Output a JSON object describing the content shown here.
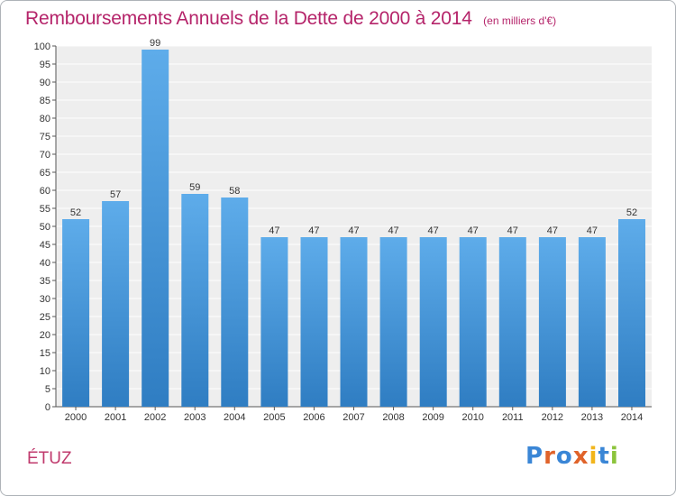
{
  "header": {
    "title": "Remboursements Annuels de la Dette de 2000 à 2014",
    "subtitle": "(en milliers d'€)"
  },
  "footer": {
    "commune": "ÉTUZ",
    "logo_text": "Proxiti",
    "logo_letters": [
      {
        "char": "P",
        "color": "#3a86d6"
      },
      {
        "char": "r",
        "color": "#e0632a"
      },
      {
        "char": "o",
        "color": "#3a86d6"
      },
      {
        "char": "x",
        "color": "#e0632a"
      },
      {
        "char": "i",
        "color": "#f2b51c"
      },
      {
        "char": "t",
        "color": "#3a86d6"
      },
      {
        "char": "i",
        "color": "#8cc43c"
      }
    ]
  },
  "colors": {
    "title": "#b5246a",
    "bar_top": "#5eacea",
    "bar_bottom": "#2f7dc2",
    "plot_background": "#eeeeee",
    "grid": "#ffffff"
  },
  "chart_data": {
    "type": "bar",
    "title": "Remboursements Annuels de la Dette de 2000 à 2014",
    "xlabel": "",
    "ylabel": "",
    "categories": [
      "2000",
      "2001",
      "2002",
      "2003",
      "2004",
      "2005",
      "2006",
      "2007",
      "2008",
      "2009",
      "2010",
      "2011",
      "2012",
      "2013",
      "2014"
    ],
    "values": [
      52,
      57,
      99,
      59,
      58,
      47,
      47,
      47,
      47,
      47,
      47,
      47,
      47,
      47,
      52
    ],
    "ylim": [
      0,
      100
    ],
    "yticks": [
      0,
      5,
      10,
      15,
      20,
      25,
      30,
      35,
      40,
      45,
      50,
      55,
      60,
      65,
      70,
      75,
      80,
      85,
      90,
      95,
      100
    ],
    "grid": true,
    "legend": "none"
  }
}
